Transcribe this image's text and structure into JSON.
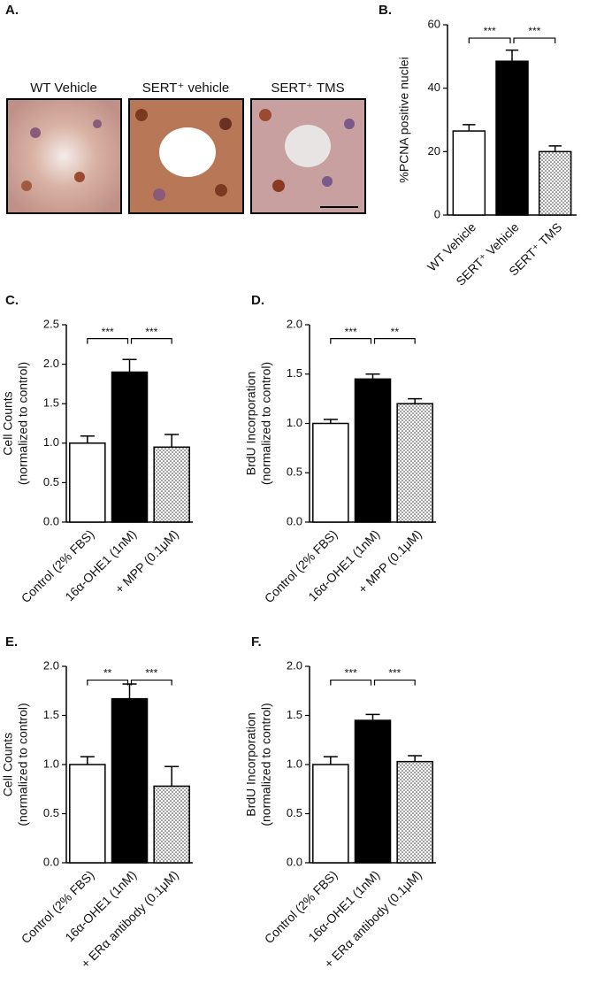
{
  "panel_a": {
    "panel": "A.",
    "images": [
      "WT Vehicle",
      "SERT⁺ vehicle",
      "SERT⁺ TMS"
    ]
  },
  "chart_data": [
    {
      "type": "bar",
      "panel": "B.",
      "ylabel": [
        "%PCNA positive nuclei"
      ],
      "categories": [
        "WT Vehicle",
        "SERT⁺ Vehicle",
        "SERT⁺ TMS"
      ],
      "values": [
        26.5,
        48.5,
        20
      ],
      "errors": [
        2,
        3.5,
        1.8
      ],
      "colors": [
        "white",
        "black",
        "stipple"
      ],
      "significance": [
        "***",
        "***"
      ],
      "ylim": [
        0,
        60
      ],
      "yticks": [
        0,
        20,
        40,
        60
      ]
    },
    {
      "type": "bar",
      "panel": "C.",
      "ylabel": [
        "Cell Counts",
        "(normalized to control)"
      ],
      "categories": [
        "Control (2% FBS)",
        "16α-OHE1 (1nM)",
        "+ MPP (0.1μM)"
      ],
      "values": [
        1.0,
        1.9,
        0.95
      ],
      "errors": [
        0.09,
        0.16,
        0.16
      ],
      "colors": [
        "white",
        "black",
        "stipple"
      ],
      "significance": [
        "***",
        "***"
      ],
      "ylim": [
        0,
        2.5
      ],
      "yticks": [
        {
          "value": 0,
          "label": "0.0"
        },
        {
          "value": 0.5,
          "label": "0.5"
        },
        {
          "value": 1,
          "label": "1.0"
        },
        {
          "value": 1.5,
          "label": "1.5"
        },
        {
          "value": 2,
          "label": "2.0"
        },
        {
          "value": 2.5,
          "label": "2.5"
        }
      ]
    },
    {
      "type": "bar",
      "panel": "D.",
      "ylabel": [
        "BrdU Incorporation",
        "(normalized to control)"
      ],
      "categories": [
        "Control (2% FBS)",
        "16α-OHE1 (1nM)",
        "+ MPP (0.1μM)"
      ],
      "values": [
        1.0,
        1.45,
        1.2
      ],
      "errors": [
        0.04,
        0.05,
        0.05
      ],
      "colors": [
        "white",
        "black",
        "stipple"
      ],
      "significance": [
        "***",
        "**"
      ],
      "ylim": [
        0,
        2
      ],
      "yticks": [
        {
          "value": 0,
          "label": "0.0"
        },
        {
          "value": 0.5,
          "label": "0.5"
        },
        {
          "value": 1,
          "label": "1.0"
        },
        {
          "value": 1.5,
          "label": "1.5"
        },
        {
          "value": 2,
          "label": "2.0"
        }
      ]
    },
    {
      "type": "bar",
      "panel": "E.",
      "ylabel": [
        "Cell Counts",
        "(normalized to control)"
      ],
      "categories": [
        "Control (2% FBS)",
        "16α-OHE1 (1nM)",
        "+ ERα antibody (0.1μM)"
      ],
      "values": [
        1.0,
        1.67,
        0.78
      ],
      "errors": [
        0.08,
        0.15,
        0.2
      ],
      "colors": [
        "white",
        "black",
        "stipple"
      ],
      "significance": [
        "**",
        "***"
      ],
      "ylim": [
        0,
        2
      ],
      "yticks": [
        {
          "value": 0,
          "label": "0.0"
        },
        {
          "value": 0.5,
          "label": "0.5"
        },
        {
          "value": 1,
          "label": "1.0"
        },
        {
          "value": 1.5,
          "label": "1.5"
        },
        {
          "value": 2,
          "label": "2.0"
        }
      ]
    },
    {
      "type": "bar",
      "panel": "F.",
      "ylabel": [
        "BrdU Incorporation",
        "(normalized to control)"
      ],
      "categories": [
        "Control (2% FBS)",
        "16α-OHE1 (1nM)",
        "+ ERα antibody (0.1μM)"
      ],
      "values": [
        1.0,
        1.45,
        1.03
      ],
      "errors": [
        0.08,
        0.06,
        0.06
      ],
      "colors": [
        "white",
        "black",
        "stipple"
      ],
      "significance": [
        "***",
        "***"
      ],
      "ylim": [
        0,
        2
      ],
      "yticks": [
        {
          "value": 0,
          "label": "0.0"
        },
        {
          "value": 0.5,
          "label": "0.5"
        },
        {
          "value": 1,
          "label": "1.0"
        },
        {
          "value": 1.5,
          "label": "1.5"
        },
        {
          "value": 2,
          "label": "2.0"
        }
      ]
    }
  ]
}
